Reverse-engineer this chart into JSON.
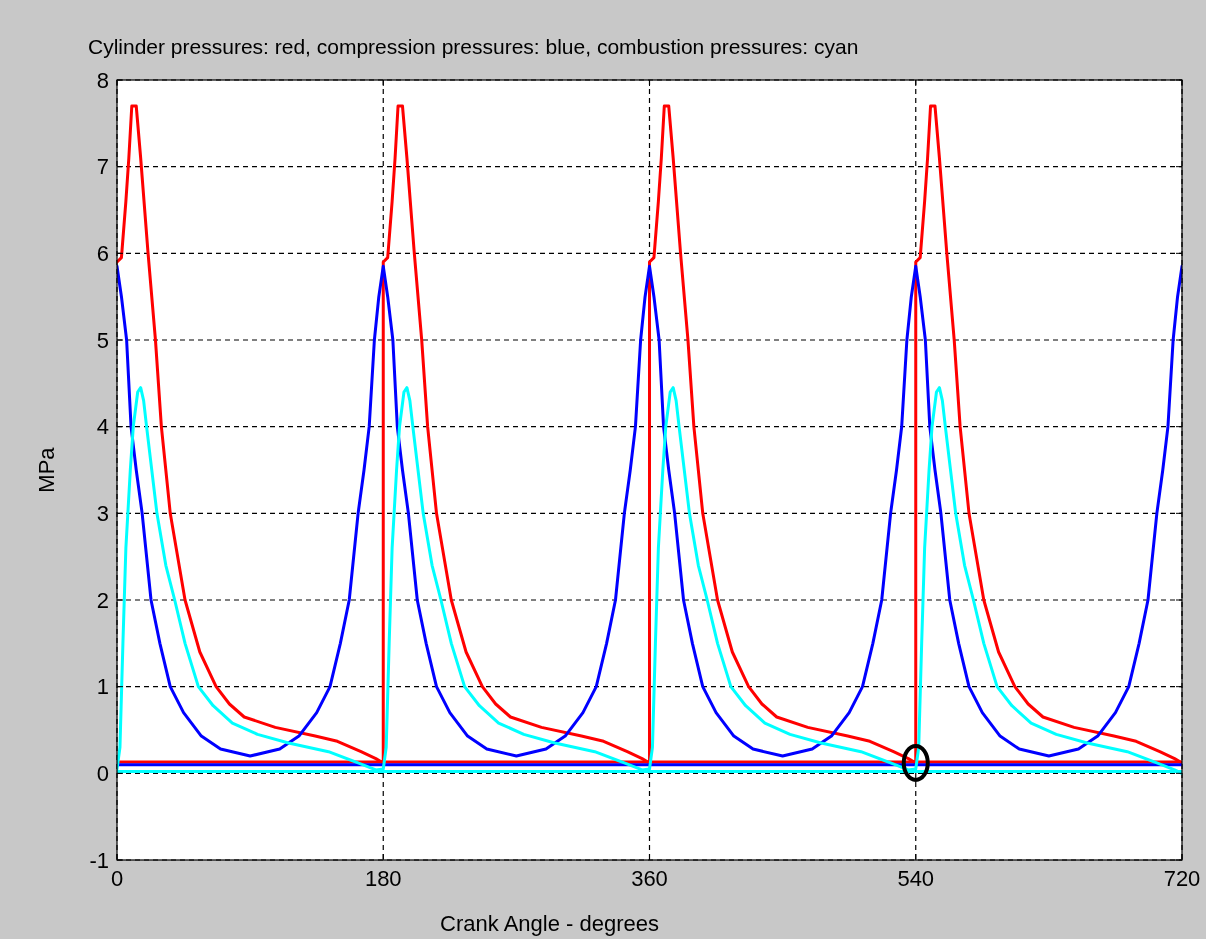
{
  "chart_data": {
    "type": "line",
    "title": "Cylinder pressures: red, compression pressures: blue,  combustion pressures: cyan",
    "xlabel": "Crank Angle - degrees",
    "ylabel": "MPa",
    "xlim": [
      0,
      720
    ],
    "xticks": [
      0,
      180,
      360,
      540,
      720
    ],
    "ylim": [
      -1,
      8
    ],
    "yticks": [
      -1,
      0,
      1,
      2,
      3,
      4,
      5,
      6,
      7,
      8
    ],
    "grid": true,
    "series": [
      {
        "color": "#ff0000",
        "x": [
          0,
          720
        ],
        "values": [
          0.13,
          0.13
        ]
      },
      {
        "color": "#ff0000",
        "x": [
          0,
          3,
          6,
          8,
          10,
          13,
          16,
          21,
          26,
          30,
          36,
          46,
          56,
          67,
          76,
          86,
          107,
          134,
          149,
          165,
          175,
          180,
          180,
          183,
          186,
          188,
          190,
          193,
          196,
          201,
          206,
          210,
          216,
          226,
          236,
          247,
          256,
          266,
          287,
          314,
          329,
          345,
          355,
          360,
          360,
          363,
          366,
          368,
          370,
          373,
          376,
          381,
          386,
          390,
          396,
          406,
          416,
          427,
          436,
          446,
          467,
          494,
          509,
          525,
          535,
          540,
          540,
          543,
          546,
          548,
          550,
          553,
          556,
          561,
          566,
          570,
          576,
          586,
          596,
          607,
          616,
          626,
          647,
          674,
          689,
          705,
          715,
          720
        ],
        "values": [
          5.9,
          5.95,
          6.6,
          7.1,
          7.7,
          7.7,
          7.1,
          6.0,
          5.0,
          4.0,
          3.0,
          2.0,
          1.4,
          1.0,
          0.8,
          0.65,
          0.53,
          0.43,
          0.37,
          0.25,
          0.17,
          0.12,
          5.9,
          5.95,
          6.6,
          7.1,
          7.7,
          7.7,
          7.1,
          6.0,
          5.0,
          4.0,
          3.0,
          2.0,
          1.4,
          1.0,
          0.8,
          0.65,
          0.53,
          0.43,
          0.37,
          0.25,
          0.17,
          0.12,
          5.9,
          5.95,
          6.6,
          7.1,
          7.7,
          7.7,
          7.1,
          6.0,
          5.0,
          4.0,
          3.0,
          2.0,
          1.4,
          1.0,
          0.8,
          0.65,
          0.53,
          0.43,
          0.37,
          0.25,
          0.17,
          0.12,
          5.9,
          5.95,
          6.6,
          7.1,
          7.7,
          7.7,
          7.1,
          6.0,
          5.0,
          4.0,
          3.0,
          2.0,
          1.4,
          1.0,
          0.8,
          0.65,
          0.53,
          0.43,
          0.37,
          0.25,
          0.17,
          0.12
        ]
      },
      {
        "color": "#0000ff",
        "x": [
          0,
          720
        ],
        "values": [
          0.1,
          0.1
        ]
      },
      {
        "color": "#0000ff",
        "x": [
          0,
          3,
          6.5,
          9.5,
          13,
          17,
          23,
          29,
          36,
          45,
          57,
          70,
          90,
          110,
          123,
          135,
          144,
          151,
          157,
          163,
          167,
          170.5,
          174,
          177,
          180,
          183,
          186.5,
          189.5,
          193,
          197,
          203,
          209,
          216,
          225,
          237,
          250,
          270,
          290,
          303,
          315,
          324,
          331,
          337,
          343,
          347,
          350.5,
          354,
          357,
          360,
          363,
          366.5,
          369.5,
          373,
          377,
          383,
          389,
          396,
          405,
          417,
          430,
          450,
          470,
          483,
          495,
          504,
          511,
          517,
          523,
          527,
          530.5,
          534,
          537,
          540,
          543,
          546.5,
          549.5,
          553,
          557,
          563,
          569,
          576,
          585,
          597,
          610,
          630,
          650,
          663,
          675,
          684,
          691,
          697,
          703,
          707,
          710.5,
          714,
          717,
          720
        ],
        "values": [
          5.85,
          5.5,
          5.0,
          4.0,
          3.5,
          3.0,
          2.0,
          1.5,
          1.0,
          0.7,
          0.43,
          0.28,
          0.2,
          0.28,
          0.43,
          0.7,
          1.0,
          1.5,
          2.0,
          3.0,
          3.5,
          4.0,
          5.0,
          5.5,
          5.85,
          5.5,
          5.0,
          4.0,
          3.5,
          3.0,
          2.0,
          1.5,
          1.0,
          0.7,
          0.43,
          0.28,
          0.2,
          0.28,
          0.43,
          0.7,
          1.0,
          1.5,
          2.0,
          3.0,
          3.5,
          4.0,
          5.0,
          5.5,
          5.85,
          5.5,
          5.0,
          4.0,
          3.5,
          3.0,
          2.0,
          1.5,
          1.0,
          0.7,
          0.43,
          0.28,
          0.2,
          0.28,
          0.43,
          0.7,
          1.0,
          1.5,
          2.0,
          3.0,
          3.5,
          4.0,
          5.0,
          5.5,
          5.85,
          5.5,
          5.0,
          4.0,
          3.5,
          3.0,
          2.0,
          1.5,
          1.0,
          0.7,
          0.43,
          0.28,
          0.2,
          0.28,
          0.43,
          0.7,
          1.0,
          1.5,
          2.0,
          3.0,
          3.5,
          4.0,
          5.0,
          5.5,
          5.85
        ]
      },
      {
        "color": "#00ffff",
        "x": [
          0,
          720
        ],
        "values": [
          0.02,
          0.02
        ]
      },
      {
        "color": "#00ffff",
        "x": [
          0,
          2,
          4,
          6,
          9,
          11,
          14,
          16,
          18,
          20,
          27,
          33,
          39,
          46,
          55,
          65,
          78,
          95,
          116,
          143,
          163,
          175,
          180,
          182,
          184,
          186,
          189,
          191,
          194,
          196,
          198,
          200,
          207,
          213,
          219,
          226,
          235,
          245,
          258,
          275,
          296,
          323,
          343,
          355,
          360,
          362,
          364,
          366,
          369,
          371,
          374,
          376,
          378,
          380,
          387,
          393,
          399,
          406,
          415,
          425,
          438,
          455,
          476,
          503,
          523,
          535,
          540,
          542,
          544,
          546,
          549,
          551,
          554,
          556,
          558,
          560,
          567,
          573,
          579,
          586,
          595,
          605,
          618,
          635,
          656,
          683,
          703,
          715,
          720
        ],
        "values": [
          0.05,
          0.3,
          1.5,
          2.6,
          3.5,
          4.0,
          4.4,
          4.45,
          4.3,
          4.0,
          3.0,
          2.4,
          2.0,
          1.5,
          1.0,
          0.78,
          0.58,
          0.45,
          0.35,
          0.25,
          0.12,
          0.04,
          0.05,
          0.3,
          1.5,
          2.6,
          3.5,
          4.0,
          4.4,
          4.45,
          4.3,
          4.0,
          3.0,
          2.4,
          2.0,
          1.5,
          1.0,
          0.78,
          0.58,
          0.45,
          0.35,
          0.25,
          0.12,
          0.04,
          0.05,
          0.3,
          1.5,
          2.6,
          3.5,
          4.0,
          4.4,
          4.45,
          4.3,
          4.0,
          3.0,
          2.4,
          2.0,
          1.5,
          1.0,
          0.78,
          0.58,
          0.45,
          0.35,
          0.25,
          0.12,
          0.04,
          0.05,
          0.3,
          1.5,
          2.6,
          3.5,
          4.0,
          4.4,
          4.45,
          4.3,
          4.0,
          3.0,
          2.4,
          2.0,
          1.5,
          1.0,
          0.78,
          0.58,
          0.45,
          0.35,
          0.25,
          0.12,
          0.04,
          0.0
        ]
      }
    ]
  }
}
